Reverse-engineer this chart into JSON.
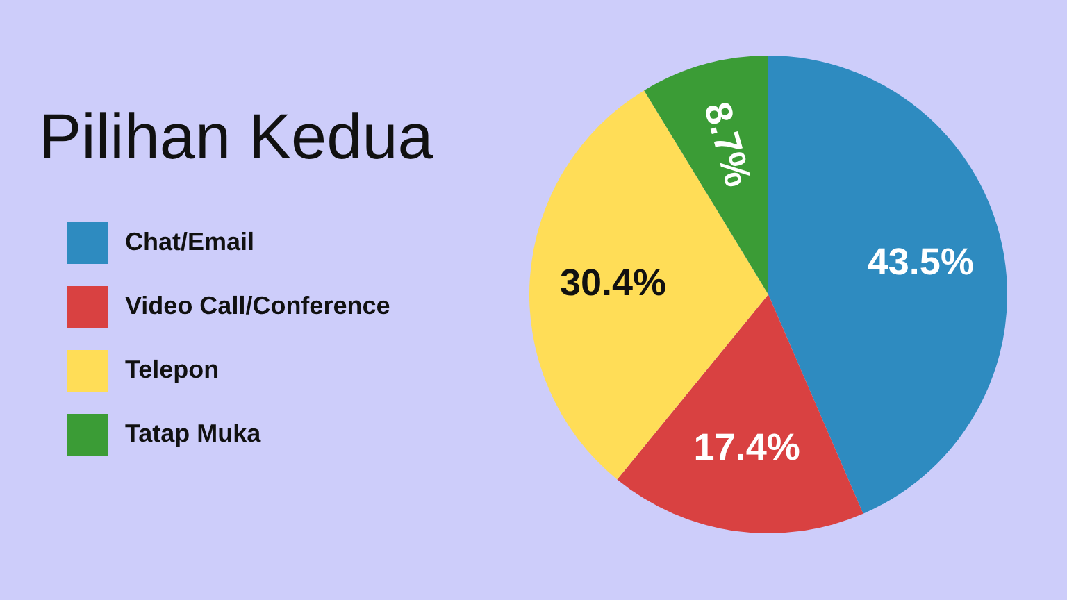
{
  "chart_data": {
    "type": "pie",
    "title": "Pilihan Kedua",
    "categories": [
      "Chat/Email",
      "Video Call/Conference",
      "Telepon",
      "Tatap Muka"
    ],
    "values": [
      43.5,
      17.4,
      30.4,
      8.7
    ],
    "colors": [
      "#2e8bc0",
      "#d94141",
      "#ffdd57",
      "#3b9c36"
    ],
    "value_labels": [
      "43.5%",
      "17.4%",
      "30.4%",
      "8.7%"
    ],
    "legend": "left"
  }
}
